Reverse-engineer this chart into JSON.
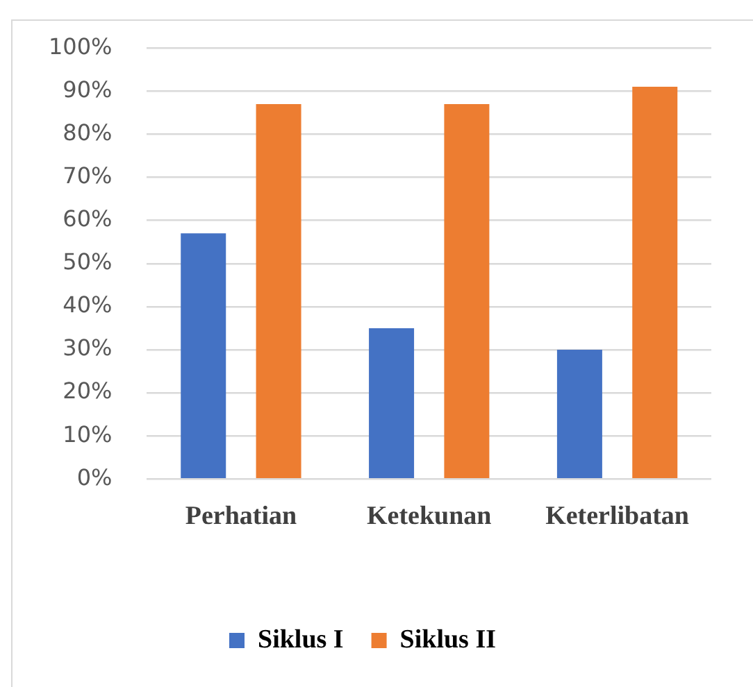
{
  "chart_data": {
    "type": "bar",
    "categories": [
      "Perhatian",
      "Ketekunan",
      "Keterlibatan"
    ],
    "series": [
      {
        "name": "Siklus I",
        "color": "#4472c4",
        "values": [
          57,
          35,
          30
        ]
      },
      {
        "name": "Siklus II",
        "color": "#ed7d31",
        "values": [
          87,
          87,
          91
        ]
      }
    ],
    "ylim": [
      0,
      100
    ],
    "yticks": [
      {
        "value": 0,
        "label": "0%"
      },
      {
        "value": 10,
        "label": "10%"
      },
      {
        "value": 20,
        "label": "20%"
      },
      {
        "value": 30,
        "label": "30%"
      },
      {
        "value": 40,
        "label": "40%"
      },
      {
        "value": 50,
        "label": "50%"
      },
      {
        "value": 60,
        "label": "60%"
      },
      {
        "value": 70,
        "label": "70%"
      },
      {
        "value": 80,
        "label": "80%"
      },
      {
        "value": 90,
        "label": "90%"
      },
      {
        "value": 100,
        "label": "100%"
      }
    ],
    "grid": "y",
    "legend": "bottom"
  }
}
